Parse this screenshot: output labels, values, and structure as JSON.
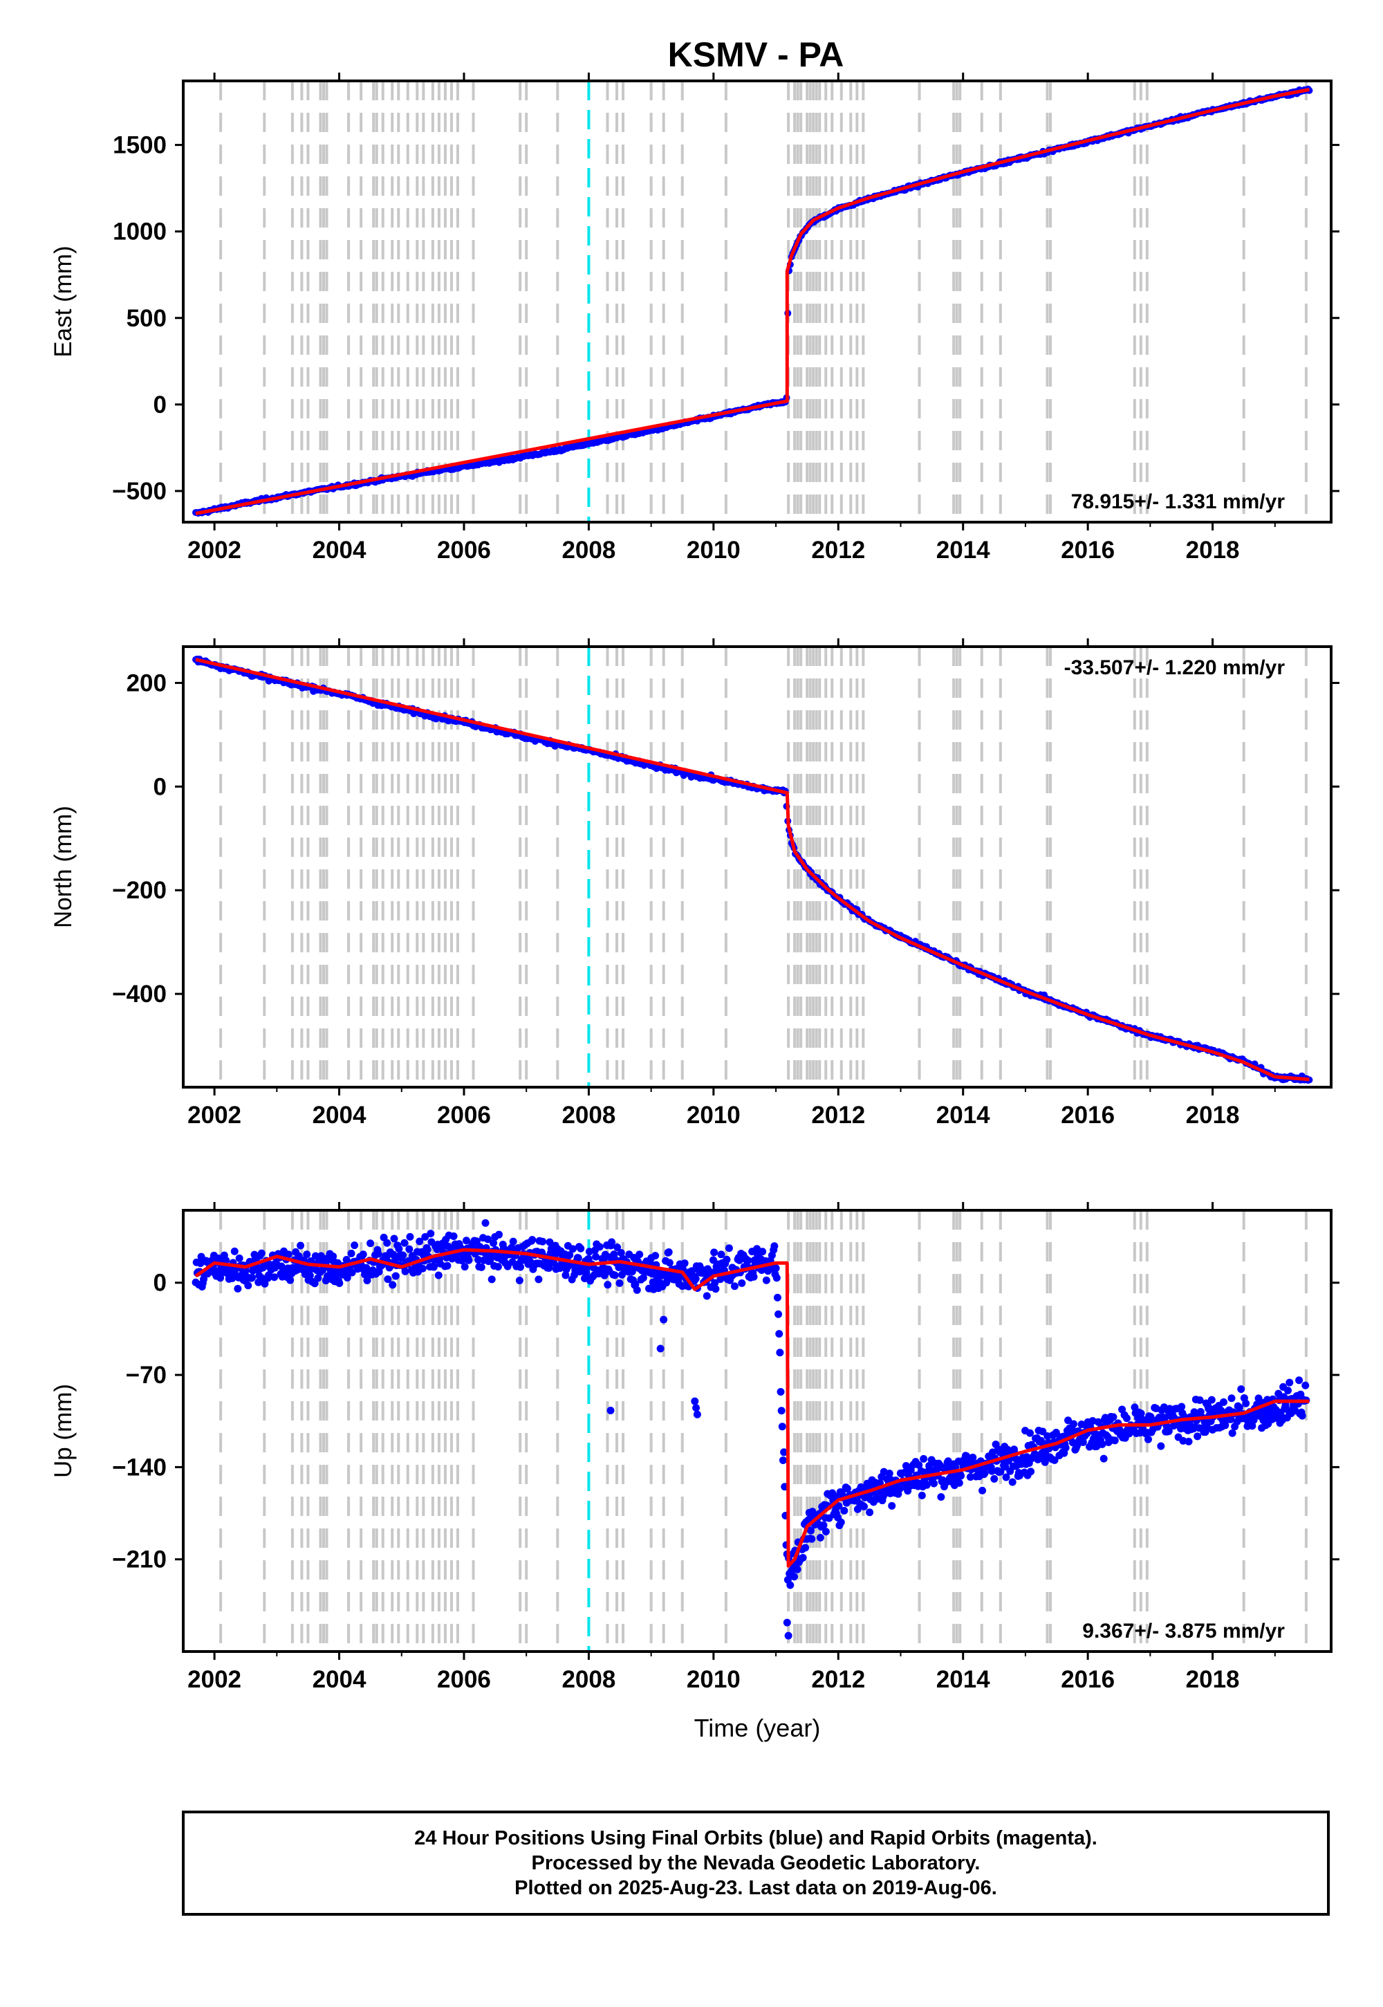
{
  "colors": {
    "data_points": "#0000ff",
    "fit_line": "#ff0000",
    "event_lines": "#c8c8c8",
    "special_line": "#00e5ee",
    "frame": "#000000"
  },
  "chart_data": [
    {
      "type": "scatter",
      "title": "KSMV - PA",
      "xlabel": "",
      "ylabel": "East (mm)",
      "xlim": [
        2001.5,
        2019.9
      ],
      "ylim": [
        -680,
        1870
      ],
      "x_ticks": [
        2002,
        2004,
        2006,
        2008,
        2010,
        2012,
        2014,
        2016,
        2018
      ],
      "y_ticks": [
        -500,
        0,
        500,
        1000,
        1500
      ],
      "rate_annotation": "78.915+/- 1.331 mm/yr",
      "annotation_position": "bottom-right",
      "series": [
        {
          "kind": "points",
          "x": [
            2001.7,
            2002.5,
            2003.5,
            2004.5,
            2005.5,
            2006.5,
            2007.5,
            2008.0,
            2009.0,
            2010.0,
            2010.8,
            2011.17,
            2011.2,
            2011.25,
            2011.4,
            2011.6,
            2012.0,
            2012.5,
            2013.0,
            2014.0,
            2015.0,
            2016.0,
            2017.0,
            2018.0,
            2019.0,
            2019.55
          ],
          "y": [
            -630,
            -570,
            -505,
            -445,
            -385,
            -330,
            -265,
            -225,
            -150,
            -70,
            -5,
            20,
            750,
            850,
            980,
            1060,
            1130,
            1190,
            1240,
            1340,
            1430,
            1520,
            1610,
            1700,
            1780,
            1820
          ]
        },
        {
          "kind": "fit",
          "x": [
            2001.7,
            2011.18,
            2011.18,
            2011.25,
            2011.4,
            2011.6,
            2012.0,
            2012.5,
            2013.0,
            2014.0,
            2015.0,
            2016.0,
            2017.0,
            2018.0,
            2019.0,
            2019.55
          ],
          "y": [
            -630,
            20,
            770,
            860,
            985,
            1065,
            1135,
            1195,
            1245,
            1345,
            1435,
            1525,
            1612,
            1700,
            1782,
            1820
          ]
        }
      ]
    },
    {
      "type": "scatter",
      "xlabel": "",
      "ylabel": "North (mm)",
      "xlim": [
        2001.5,
        2019.9
      ],
      "ylim": [
        -580,
        270
      ],
      "x_ticks": [
        2002,
        2004,
        2006,
        2008,
        2010,
        2012,
        2014,
        2016,
        2018
      ],
      "y_ticks": [
        -400,
        -200,
        0,
        200
      ],
      "rate_annotation": "-33.507+/- 1.220 mm/yr",
      "annotation_position": "top-right",
      "series": [
        {
          "kind": "points",
          "x": [
            2001.7,
            2002.0,
            2003.0,
            2004.0,
            2005.0,
            2006.0,
            2007.0,
            2008.0,
            2009.0,
            2010.0,
            2010.8,
            2011.15,
            2011.2,
            2011.3,
            2011.5,
            2011.8,
            2012.0,
            2012.5,
            2013.0,
            2014.0,
            2015.0,
            2016.0,
            2017.0,
            2018.0,
            2018.5,
            2019.0,
            2019.55
          ],
          "y": [
            245,
            235,
            205,
            180,
            150,
            125,
            95,
            70,
            40,
            15,
            -5,
            -10,
            -80,
            -125,
            -160,
            -195,
            -215,
            -260,
            -290,
            -345,
            -395,
            -440,
            -480,
            -510,
            -530,
            -560,
            -565
          ]
        },
        {
          "kind": "fit",
          "x": [
            2001.7,
            2011.18,
            2011.2,
            2011.3,
            2011.5,
            2011.8,
            2012.0,
            2012.5,
            2013.0,
            2014.0,
            2015.0,
            2016.0,
            2017.0,
            2018.0,
            2018.5,
            2019.0,
            2019.55
          ],
          "y": [
            245,
            -12,
            -75,
            -125,
            -160,
            -195,
            -215,
            -260,
            -292,
            -345,
            -395,
            -440,
            -480,
            -512,
            -532,
            -560,
            -565
          ]
        }
      ]
    },
    {
      "type": "scatter",
      "xlabel": "Time (year)",
      "ylabel": "Up (mm)",
      "xlim": [
        2001.5,
        2019.9
      ],
      "ylim": [
        -280,
        55
      ],
      "x_ticks": [
        2002,
        2004,
        2006,
        2008,
        2010,
        2012,
        2014,
        2016,
        2018
      ],
      "y_ticks": [
        -210,
        -140,
        -70,
        0
      ],
      "rate_annotation": "9.367+/- 3.875 mm/yr",
      "annotation_position": "bottom-right",
      "series": [
        {
          "kind": "points",
          "x": [
            2001.7,
            2002.0,
            2002.5,
            2003.0,
            2003.5,
            2004.0,
            2004.5,
            2005.0,
            2005.5,
            2006.0,
            2006.5,
            2007.0,
            2007.5,
            2008.0,
            2008.5,
            2009.0,
            2009.5,
            2010.0,
            2010.5,
            2011.0,
            2011.2,
            2011.3,
            2011.5,
            2012.0,
            2012.5,
            2013.0,
            2013.5,
            2014.0,
            2014.5,
            2015.0,
            2015.5,
            2016.0,
            2016.5,
            2017.0,
            2017.5,
            2018.0,
            2018.5,
            2019.0,
            2019.5
          ],
          "y": [
            5,
            12,
            10,
            15,
            12,
            10,
            15,
            18,
            20,
            24,
            22,
            20,
            18,
            15,
            12,
            10,
            5,
            8,
            12,
            18,
            -230,
            -210,
            -190,
            -165,
            -160,
            -150,
            -145,
            -142,
            -138,
            -130,
            -120,
            -115,
            -112,
            -108,
            -105,
            -103,
            -100,
            -95,
            -88
          ]
        },
        {
          "kind": "outliers",
          "x": [
            2008.35,
            2009.15,
            2009.2,
            2009.7,
            2009.72,
            2009.74,
            2011.18,
            2011.2
          ],
          "y": [
            -97,
            -50,
            -28,
            -90,
            -95,
            -100,
            -258,
            -268
          ]
        },
        {
          "kind": "fit",
          "x": [
            2001.7,
            2002.0,
            2002.5,
            2003.0,
            2003.5,
            2004.0,
            2004.5,
            2005.0,
            2005.5,
            2006.0,
            2006.5,
            2007.0,
            2007.5,
            2008.0,
            2008.5,
            2009.0,
            2009.5,
            2009.7,
            2010.0,
            2010.5,
            2011.0,
            2011.18,
            2011.2,
            2011.3,
            2011.5,
            2012.0,
            2012.5,
            2013.0,
            2013.5,
            2014.0,
            2014.5,
            2015.0,
            2015.5,
            2016.0,
            2016.5,
            2017.0,
            2017.5,
            2018.0,
            2018.5,
            2019.0,
            2019.55
          ],
          "y": [
            5,
            15,
            12,
            20,
            14,
            12,
            18,
            12,
            20,
            25,
            24,
            22,
            18,
            14,
            16,
            12,
            8,
            -5,
            5,
            10,
            15,
            15,
            -215,
            -210,
            -185,
            -165,
            -158,
            -150,
            -146,
            -142,
            -135,
            -128,
            -122,
            -112,
            -108,
            -108,
            -104,
            -102,
            -99,
            -90,
            -90
          ]
        }
      ]
    }
  ],
  "event_lines_x": [
    2002.1,
    2002.8,
    2003.25,
    2003.4,
    2003.5,
    2003.7,
    2003.75,
    2003.8,
    2004.15,
    2004.35,
    2004.55,
    2004.6,
    2004.7,
    2004.85,
    2004.95,
    2005.1,
    2005.25,
    2005.35,
    2005.5,
    2005.6,
    2005.7,
    2005.8,
    2005.9,
    2006.15,
    2006.9,
    2007.0,
    2007.5,
    2008.3,
    2008.45,
    2008.55,
    2009.0,
    2009.2,
    2009.5,
    2010.2,
    2011.2,
    2011.3,
    2011.35,
    2011.4,
    2011.5,
    2011.55,
    2011.6,
    2011.65,
    2011.7,
    2011.8,
    2011.9,
    2012.05,
    2012.2,
    2012.3,
    2012.4,
    2013.3,
    2013.85,
    2013.9,
    2013.95,
    2014.3,
    2014.6,
    2015.35,
    2015.4,
    2016.75,
    2016.85,
    2016.95,
    2018.5,
    2019.5
  ],
  "special_line_x": 2008.0,
  "footer": {
    "line1": "24 Hour Positions Using Final Orbits (blue) and Rapid Orbits (magenta).",
    "line2": "Processed by the Nevada Geodetic Laboratory.",
    "line3": "Plotted on 2025-Aug-23. Last data on 2019-Aug-06."
  }
}
